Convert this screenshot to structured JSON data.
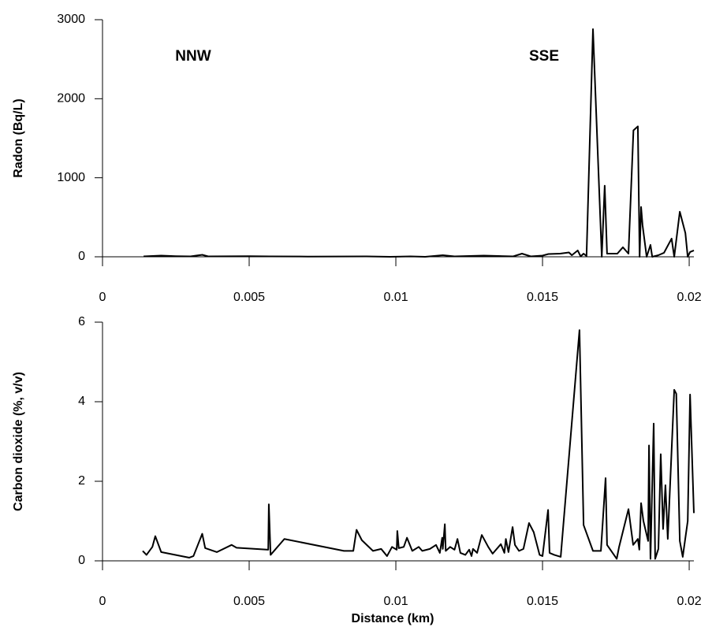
{
  "chart_data": [
    {
      "type": "line",
      "ylabel": "Radon (Bq/L)",
      "annotations": [
        "NNW",
        "SSE"
      ],
      "color": "#000000",
      "xlim": [
        0,
        0.02016
      ],
      "xticks": [
        0,
        0.005,
        0.01,
        0.015,
        0.02
      ],
      "ylim": [
        0,
        3000
      ],
      "yticks": [
        0,
        1000,
        2000,
        3000
      ],
      "x": [
        0.0014,
        0.0017,
        0.002,
        0.0025,
        0.003,
        0.0034,
        0.0036,
        0.005,
        0.0057,
        0.007,
        0.009,
        0.0098,
        0.0105,
        0.011,
        0.0116,
        0.012,
        0.0125,
        0.013,
        0.0135,
        0.014,
        0.0143,
        0.0146,
        0.015,
        0.0152,
        0.0156,
        0.0159,
        0.016,
        0.0162,
        0.0163,
        0.0164,
        0.0165,
        0.01672,
        0.01702,
        0.01712,
        0.0172,
        0.01755,
        0.01774,
        0.01793,
        0.0181,
        0.01825,
        0.01831,
        0.01836,
        0.01841,
        0.01855,
        0.01868,
        0.01874,
        0.01895,
        0.01914,
        0.0194,
        0.01949,
        0.01968,
        0.01987,
        0.01995,
        0.02003,
        0.02016
      ],
      "values": [
        5,
        10,
        15,
        8,
        5,
        25,
        5,
        8,
        5,
        3,
        5,
        0,
        5,
        0,
        20,
        5,
        10,
        15,
        10,
        5,
        40,
        5,
        15,
        35,
        40,
        55,
        20,
        80,
        5,
        40,
        10,
        2880,
        0,
        900,
        40,
        40,
        120,
        40,
        1600,
        1650,
        0,
        630,
        400,
        0,
        150,
        0,
        20,
        50,
        230,
        0,
        570,
        300,
        0,
        60,
        80
      ]
    },
    {
      "type": "line",
      "ylabel": "Carbon dioxide (%, v/v)",
      "xlabel": "Distance (km)",
      "color": "#000000",
      "xlim": [
        0,
        0.02016
      ],
      "xticks": [
        0,
        0.005,
        0.01,
        0.015,
        0.02
      ],
      "ylim": [
        0,
        6
      ],
      "yticks": [
        0,
        2,
        4,
        6
      ],
      "x": [
        0.00137,
        0.0015,
        0.0017,
        0.0018,
        0.002,
        0.00296,
        0.0031,
        0.0034,
        0.0035,
        0.0039,
        0.0044,
        0.00457,
        0.00565,
        0.00567,
        0.00573,
        0.0062,
        0.00823,
        0.00855,
        0.00866,
        0.00884,
        0.00922,
        0.0095,
        0.0097,
        0.00987,
        0.01003,
        0.01005,
        0.0101,
        0.01027,
        0.01038,
        0.01056,
        0.01078,
        0.0109,
        0.01116,
        0.01137,
        0.0115,
        0.01158,
        0.0116,
        0.01167,
        0.0117,
        0.01185,
        0.012,
        0.0121,
        0.0122,
        0.01237,
        0.0125,
        0.01258,
        0.01263,
        0.01277,
        0.01293,
        0.01315,
        0.0133,
        0.01358,
        0.0137,
        0.01375,
        0.01384,
        0.01398,
        0.01406,
        0.0142,
        0.01435,
        0.01454,
        0.0147,
        0.0149,
        0.015,
        0.01519,
        0.01524,
        0.0154,
        0.01562,
        0.01626,
        0.0164,
        0.01672,
        0.01699,
        0.01715,
        0.0172,
        0.01753,
        0.01761,
        0.01793,
        0.01809,
        0.01825,
        0.0183,
        0.01836,
        0.01844,
        0.0186,
        0.01863,
        0.01868,
        0.01879,
        0.01884,
        0.01895,
        0.01903,
        0.01911,
        0.01919,
        0.01927,
        0.01949,
        0.01956,
        0.01968,
        0.01978,
        0.01995,
        0.02003,
        0.02016
      ],
      "values": [
        0.25,
        0.15,
        0.35,
        0.62,
        0.22,
        0.08,
        0.12,
        0.68,
        0.32,
        0.22,
        0.4,
        0.33,
        0.28,
        1.42,
        0.15,
        0.55,
        0.25,
        0.25,
        0.78,
        0.52,
        0.25,
        0.3,
        0.12,
        0.35,
        0.28,
        0.75,
        0.32,
        0.35,
        0.58,
        0.25,
        0.35,
        0.25,
        0.3,
        0.4,
        0.2,
        0.58,
        0.3,
        0.92,
        0.25,
        0.35,
        0.28,
        0.55,
        0.2,
        0.15,
        0.28,
        0.12,
        0.3,
        0.2,
        0.65,
        0.35,
        0.18,
        0.42,
        0.2,
        0.55,
        0.22,
        0.85,
        0.4,
        0.25,
        0.3,
        0.95,
        0.72,
        0.15,
        0.12,
        1.28,
        0.2,
        0.15,
        0.1,
        5.8,
        0.9,
        0.25,
        0.25,
        2.08,
        0.4,
        0.05,
        0.35,
        1.3,
        0.4,
        0.55,
        0.28,
        1.45,
        1.0,
        0.5,
        2.9,
        0.05,
        3.45,
        0.05,
        0.3,
        2.68,
        0.8,
        1.9,
        0.55,
        4.3,
        4.2,
        0.5,
        0.1,
        1.0,
        4.18,
        1.2
      ]
    }
  ]
}
